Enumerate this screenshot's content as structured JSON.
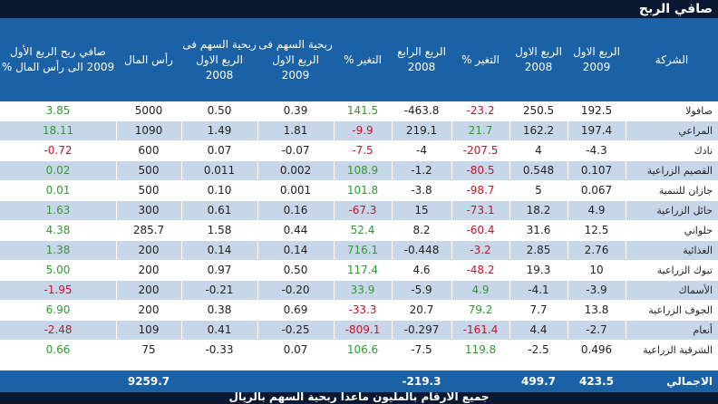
{
  "title": "صافي الربح",
  "headers": {
    "company": "الشركة",
    "q1_2009": "الربع الاول 2009",
    "q1_2008": "الربع الاول 2008",
    "change1": "التغير %",
    "q4_2008": "الربع الرابع 2008",
    "change2": "التغير %",
    "eps_q1_2009": "ربحية السهم فى الربع الاول 2009",
    "eps_q1_2008": "ربحية السهم فى الربع الاول 2008",
    "capital": "رأس المال",
    "profit_to_capital": "صافي ربح الربع الأول 2009 الى رأس المال %"
  },
  "rows": [
    {
      "company": "صافولا",
      "q1_2009": "192.5",
      "q1_2008": "250.5",
      "change1": "-23.2",
      "q4_2008": "-463.8",
      "change2": "141.5",
      "eps_2009": "0.39",
      "eps_2008": "0.50",
      "capital": "5000",
      "ratio": "3.85"
    },
    {
      "company": "المراعي",
      "q1_2009": "197.4",
      "q1_2008": "162.2",
      "change1": "21.7",
      "q4_2008": "219.1",
      "change2": "-9.9",
      "eps_2009": "1.81",
      "eps_2008": "1.49",
      "capital": "1090",
      "ratio": "18.11"
    },
    {
      "company": "نادك",
      "q1_2009": "-4.3",
      "q1_2008": "4",
      "change1": "-207.5",
      "q4_2008": "-4",
      "change2": "-7.5",
      "eps_2009": "-0.07",
      "eps_2008": "0.07",
      "capital": "600",
      "ratio": "-0.72"
    },
    {
      "company": "القصيم الزراعية",
      "q1_2009": "0.107",
      "q1_2008": "0.548",
      "change1": "-80.5",
      "q4_2008": "-1.2",
      "change2": "108.9",
      "eps_2009": "0.002",
      "eps_2008": "0.011",
      "capital": "500",
      "ratio": "0.02"
    },
    {
      "company": "جازان للتنمية",
      "q1_2009": "0.067",
      "q1_2008": "5",
      "change1": "-98.7",
      "q4_2008": "-3.8",
      "change2": "101.8",
      "eps_2009": "0.001",
      "eps_2008": "0.10",
      "capital": "500",
      "ratio": "0.01"
    },
    {
      "company": "حائل الزراعية",
      "q1_2009": "4.9",
      "q1_2008": "18.2",
      "change1": "-73.1",
      "q4_2008": "15",
      "change2": "-67.3",
      "eps_2009": "0.16",
      "eps_2008": "0.61",
      "capital": "300",
      "ratio": "1.63"
    },
    {
      "company": "حلواني",
      "q1_2009": "12.5",
      "q1_2008": "31.6",
      "change1": "-60.4",
      "q4_2008": "8.2",
      "change2": "52.4",
      "eps_2009": "0.44",
      "eps_2008": "1.58",
      "capital": "285.7",
      "ratio": "4.38"
    },
    {
      "company": "الغذائية",
      "q1_2009": "2.76",
      "q1_2008": "2.85",
      "change1": "-3.2",
      "q4_2008": "-0.448",
      "change2": "716.1",
      "eps_2009": "0.14",
      "eps_2008": "0.14",
      "capital": "200",
      "ratio": "1.38"
    },
    {
      "company": "تبوك الزراعية",
      "q1_2009": "10",
      "q1_2008": "19.3",
      "change1": "-48.2",
      "q4_2008": "4.6",
      "change2": "117.4",
      "eps_2009": "0.50",
      "eps_2008": "0.97",
      "capital": "200",
      "ratio": "5.00"
    },
    {
      "company": "الأسماك",
      "q1_2009": "-3.9",
      "q1_2008": "-4.1",
      "change1": "4.9",
      "q4_2008": "-5.9",
      "change2": "33.9",
      "eps_2009": "-0.20",
      "eps_2008": "-0.21",
      "capital": "200",
      "ratio": "-1.95"
    },
    {
      "company": "الجوف الزراعية",
      "q1_2009": "13.8",
      "q1_2008": "7.7",
      "change1": "79.2",
      "q4_2008": "20.7",
      "change2": "-33.3",
      "eps_2009": "0.69",
      "eps_2008": "0.38",
      "capital": "200",
      "ratio": "6.90"
    },
    {
      "company": "أنعام",
      "q1_2009": "-2.7",
      "q1_2008": "4.4",
      "change1": "-161.4",
      "q4_2008": "-0.297",
      "change2": "-809.1",
      "eps_2009": "-0.25",
      "eps_2008": "0.41",
      "capital": "109",
      "ratio": "-2.48"
    },
    {
      "company": "الشرقية الزراعية",
      "q1_2009": "0.496",
      "q1_2008": "-2.5",
      "change1": "119.8",
      "q4_2008": "-7.5",
      "change2": "106.6",
      "eps_2009": "0.07",
      "eps_2008": "-0.33",
      "capital": "75",
      "ratio": "0.66"
    }
  ],
  "total": {
    "label": "الاجمالي",
    "q1_2009": "423.5",
    "q1_2008": "499.7",
    "q4_2008": "-219.3",
    "capital": "9259.7"
  },
  "footer": "جميع الأرقام بالمليون ماعدا ربحية السهم بالريال",
  "colors": {
    "header_bg": "#1b61a6",
    "band_bg": "#c8d6ea",
    "title_bg": "#0a1930",
    "positive": "#2e9b2e",
    "negative": "#c0152b"
  }
}
